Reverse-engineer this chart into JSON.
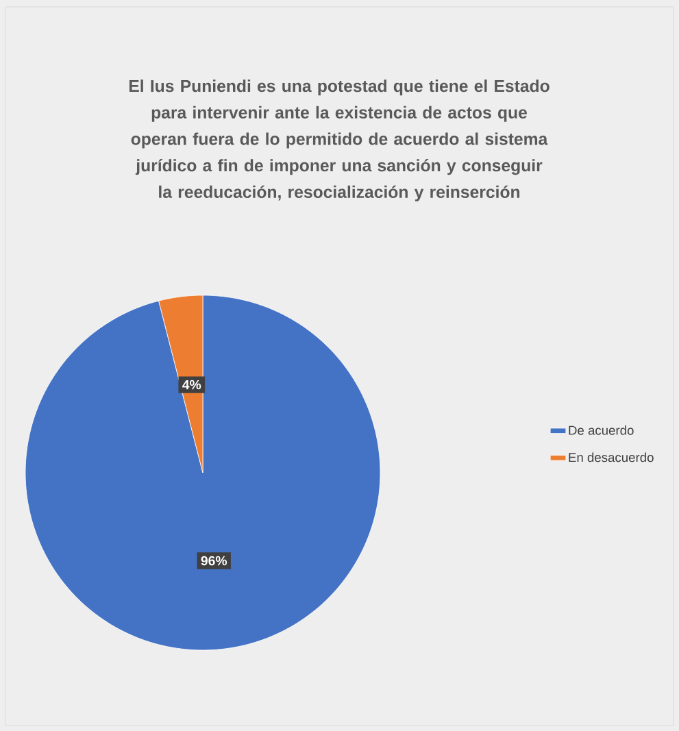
{
  "chart_data": {
    "type": "pie",
    "title": "El Ius Puniendi es una potestad que tiene el Estado para intervenir ante la existencia de actos que operan fuera de lo permitido de acuerdo al sistema jurídico a fin de imponer una sanción y conseguir la reeducación, resocialización y reinserción",
    "categories": [
      "De acuerdo",
      "En desacuerdo"
    ],
    "values": [
      96,
      4
    ],
    "value_labels": [
      "96%",
      "4%"
    ],
    "colors": [
      "#4472c4",
      "#ed7d31"
    ],
    "legend": "right"
  }
}
